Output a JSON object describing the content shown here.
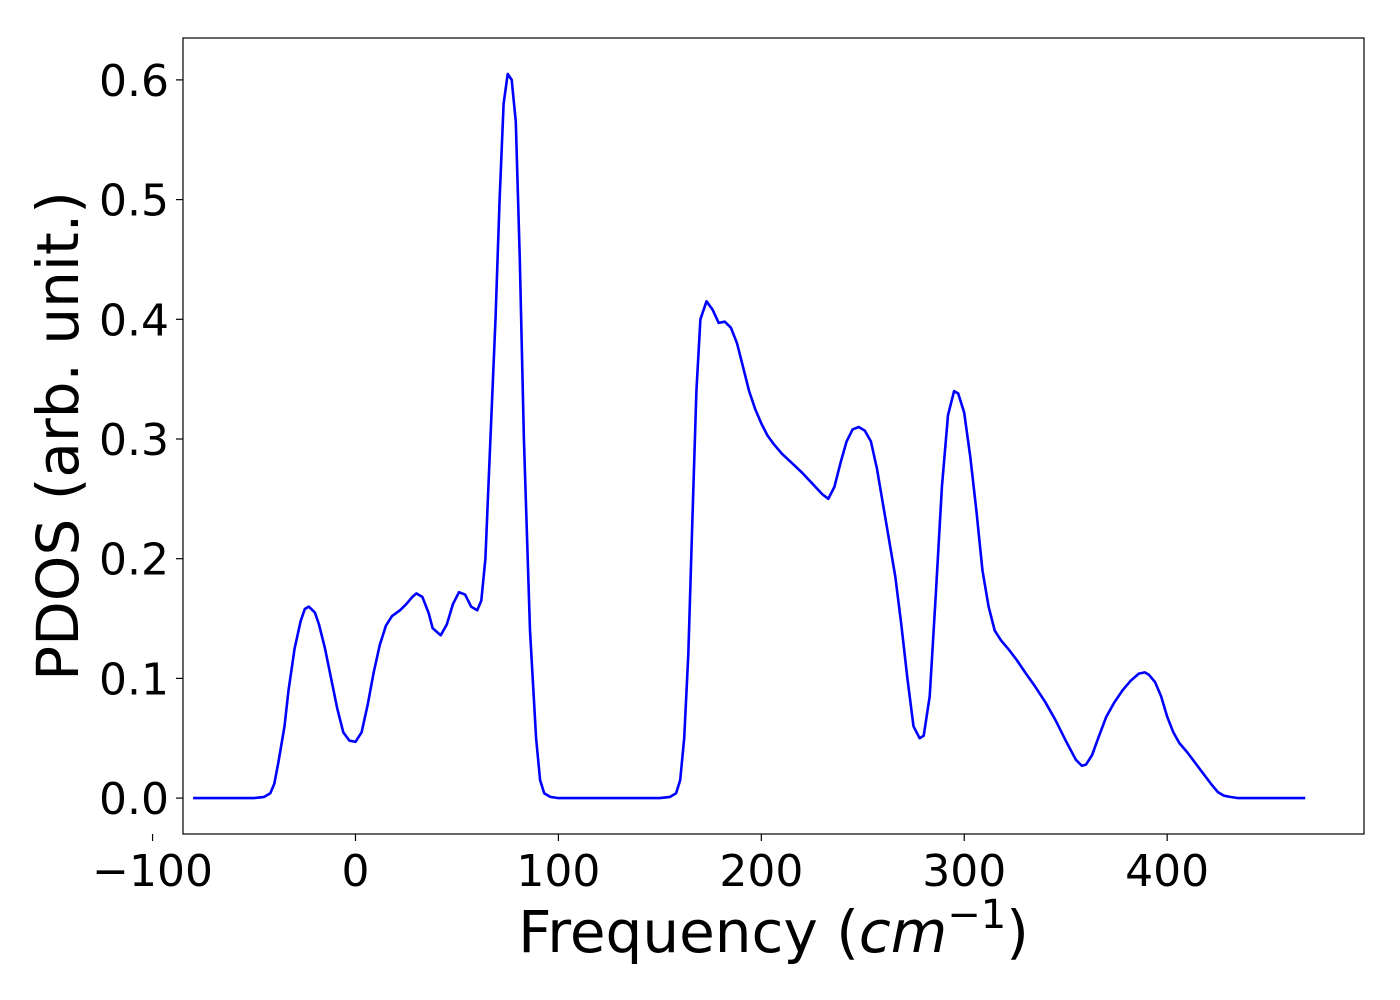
{
  "chart_data": {
    "type": "line",
    "title": "",
    "xlabel": "Frequency",
    "xlabel_unit_base": "cm",
    "xlabel_unit_exp": "−1",
    "ylabel": "PDOS (arb. unit.)",
    "xlim": [
      -85,
      497
    ],
    "ylim": [
      -0.03,
      0.635
    ],
    "x_ticks": [
      -100,
      0,
      100,
      200,
      300,
      400
    ],
    "x_tick_labels": [
      "−100",
      "0",
      "100",
      "200",
      "300",
      "400"
    ],
    "y_ticks": [
      0.0,
      0.1,
      0.2,
      0.3,
      0.4,
      0.5,
      0.6
    ],
    "y_tick_labels": [
      "0.0",
      "0.1",
      "0.2",
      "0.3",
      "0.4",
      "0.5",
      "0.6"
    ],
    "grid": false,
    "legend": "none",
    "series": [
      {
        "color": "#0000ff",
        "x": [
          -80,
          -50,
          -45,
          -42,
          -40,
          -38,
          -35,
          -33,
          -30,
          -27,
          -25,
          -23,
          -20,
          -18,
          -15,
          -12,
          -9,
          -6,
          -3,
          0,
          3,
          6,
          9,
          12,
          15,
          18,
          22,
          25,
          28,
          30,
          33,
          36,
          38,
          42,
          45,
          48,
          51,
          54,
          57,
          60,
          62,
          64,
          66,
          69,
          71,
          73,
          75,
          77,
          79,
          81,
          83,
          86,
          89,
          91,
          93,
          96,
          100,
          110,
          130,
          150,
          155,
          158,
          160,
          162,
          164,
          166,
          168,
          170,
          173,
          176,
          179,
          182,
          185,
          188,
          191,
          194,
          197,
          200,
          203,
          206,
          210,
          215,
          220,
          225,
          230,
          233,
          236,
          239,
          242,
          245,
          248,
          251,
          254,
          257,
          260,
          263,
          266,
          269,
          272,
          275,
          278,
          280,
          283,
          286,
          289,
          292,
          295,
          297,
          300,
          303,
          306,
          309,
          312,
          315,
          318,
          322,
          326,
          330,
          335,
          340,
          345,
          350,
          355,
          358,
          360,
          363,
          366,
          370,
          374,
          378,
          382,
          386,
          389,
          391,
          394,
          397,
          400,
          403,
          406,
          410,
          414,
          418,
          422,
          425,
          428,
          431,
          435,
          440,
          450,
          468
        ],
        "y": [
          0,
          0,
          0.001,
          0.004,
          0.012,
          0.03,
          0.06,
          0.09,
          0.125,
          0.148,
          0.158,
          0.16,
          0.155,
          0.145,
          0.125,
          0.1,
          0.075,
          0.055,
          0.048,
          0.047,
          0.055,
          0.078,
          0.105,
          0.128,
          0.144,
          0.152,
          0.157,
          0.162,
          0.168,
          0.171,
          0.168,
          0.155,
          0.142,
          0.136,
          0.145,
          0.162,
          0.172,
          0.17,
          0.16,
          0.157,
          0.165,
          0.2,
          0.28,
          0.4,
          0.5,
          0.58,
          0.605,
          0.6,
          0.565,
          0.45,
          0.3,
          0.14,
          0.05,
          0.015,
          0.004,
          0.001,
          0,
          0,
          0,
          0,
          0.001,
          0.004,
          0.015,
          0.05,
          0.12,
          0.23,
          0.34,
          0.4,
          0.415,
          0.408,
          0.397,
          0.398,
          0.393,
          0.38,
          0.36,
          0.34,
          0.325,
          0.313,
          0.303,
          0.296,
          0.288,
          0.28,
          0.272,
          0.263,
          0.254,
          0.25,
          0.26,
          0.28,
          0.298,
          0.308,
          0.31,
          0.307,
          0.298,
          0.275,
          0.245,
          0.215,
          0.185,
          0.145,
          0.1,
          0.06,
          0.05,
          0.052,
          0.085,
          0.17,
          0.26,
          0.32,
          0.34,
          0.338,
          0.322,
          0.285,
          0.24,
          0.19,
          0.16,
          0.14,
          0.132,
          0.124,
          0.115,
          0.105,
          0.093,
          0.08,
          0.065,
          0.048,
          0.032,
          0.027,
          0.028,
          0.036,
          0.05,
          0.068,
          0.08,
          0.09,
          0.098,
          0.104,
          0.105,
          0.103,
          0.097,
          0.085,
          0.068,
          0.055,
          0.046,
          0.038,
          0.029,
          0.02,
          0.011,
          0.005,
          0.002,
          0.001,
          0,
          0,
          0,
          0
        ]
      }
    ]
  }
}
